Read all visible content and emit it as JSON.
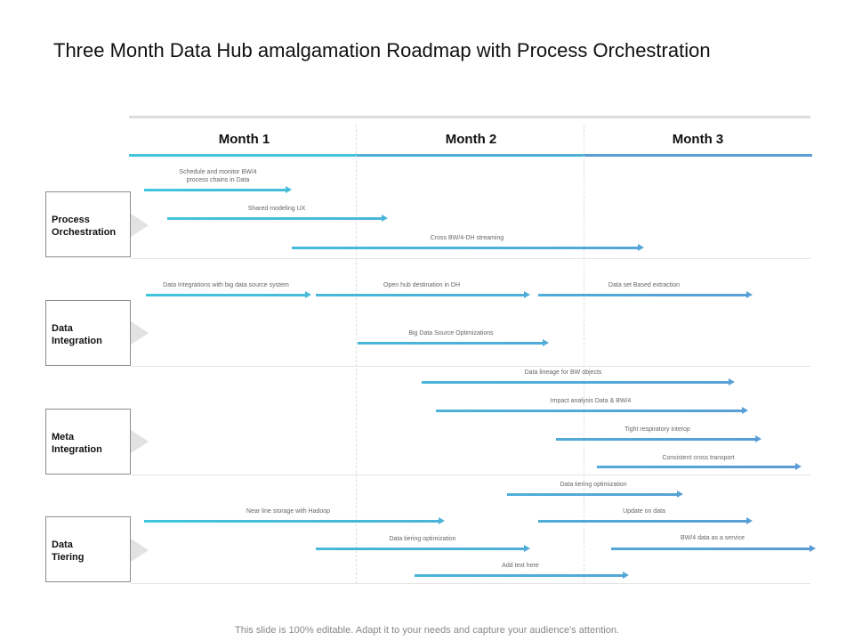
{
  "title": "Three Month Data Hub amalgamation Roadmap with Process Orchestration",
  "months": [
    "Month 1",
    "Month 2",
    "Month 3"
  ],
  "categories": [
    {
      "id": "process-orchestration",
      "label": "Process\nOrchestration"
    },
    {
      "id": "data-integration",
      "label": "Data\nIntegration"
    },
    {
      "id": "meta-integration",
      "label": "Meta\nIntegration"
    },
    {
      "id": "data-tiering",
      "label": "Data\nTiering"
    }
  ],
  "tasks": [
    {
      "label": "Schedule  and monitor  BW/4\nprocess chains  in Data"
    },
    {
      "label": "Shared  modeling  UX"
    },
    {
      "label": "Cross BW/4-DH streaming"
    },
    {
      "label": "Data Integrations  with big data source system"
    },
    {
      "label": "Open hub destination  in DH"
    },
    {
      "label": "Data set Based  extraction"
    },
    {
      "label": "Big Data Source Optimizations"
    },
    {
      "label": "Data lineage  for  BW objects"
    },
    {
      "label": "Impact analysis Data  & BW/4"
    },
    {
      "label": "Tight respiratory interop"
    },
    {
      "label": "Consistent  cross transport"
    },
    {
      "label": "Data tiering optimization"
    },
    {
      "label": "Near line storage with Hadoop"
    },
    {
      "label": "Update  on data"
    },
    {
      "label": "Data tiering optimization"
    },
    {
      "label": "BW/4 data as a service"
    },
    {
      "label": "Add text here"
    }
  ],
  "colors": {
    "cyan": "#3fc6dc",
    "blue": "#5b9bd5",
    "rule": "#dcdcdc"
  },
  "footer": "This slide is 100% editable. Adapt it to your needs and capture your audience's attention."
}
